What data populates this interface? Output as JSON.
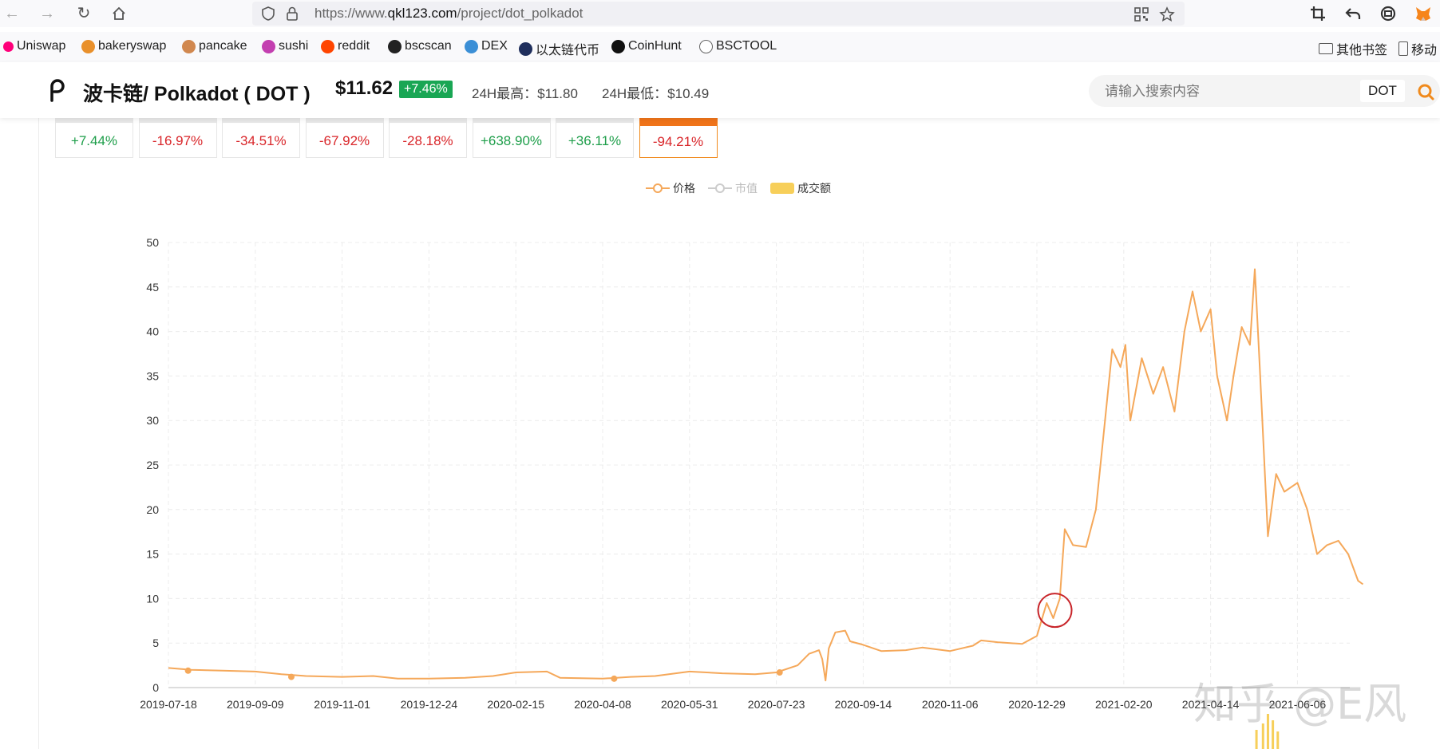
{
  "browser": {
    "url_prefix": "https://www.",
    "url_domain": "qkl123.com",
    "url_path": "/project/dot_polkadot",
    "bookmarks": [
      {
        "label": "Uniswap",
        "color": "#ff007a"
      },
      {
        "label": "bakeryswap",
        "color": "#e9902b"
      },
      {
        "label": "pancake",
        "color": "#d1884f"
      },
      {
        "label": "sushi",
        "color": "#c33fb0"
      },
      {
        "label": "reddit",
        "color": "#ff4500"
      },
      {
        "label": "bscscan",
        "color": "#222222"
      },
      {
        "label": "DEX",
        "color": "#3b8fd6"
      },
      {
        "label": "以太链代币",
        "color": "#1f2e5c"
      },
      {
        "label": "CoinHunt",
        "color": "#111111"
      },
      {
        "label": "BSCTOOL",
        "color": "#666666"
      }
    ],
    "other_bookmarks": "其他书签",
    "mobile_bookmarks": "移动"
  },
  "header": {
    "coin_name": "波卡链/ Polkadot ( DOT )",
    "price": "$11.62",
    "change": "+7.46%",
    "high_label": "24H最高：$11.80",
    "low_label": "24H最低：$10.49",
    "search_placeholder": "请输入搜索内容",
    "search_tag": "DOT"
  },
  "period_cards": [
    {
      "value": "+7.44%",
      "dir": "up"
    },
    {
      "value": "-16.97%",
      "dir": "down"
    },
    {
      "value": "-34.51%",
      "dir": "down"
    },
    {
      "value": "-67.92%",
      "dir": "down"
    },
    {
      "value": "-28.18%",
      "dir": "down"
    },
    {
      "value": "+638.90%",
      "dir": "up"
    },
    {
      "value": "+36.11%",
      "dir": "up"
    },
    {
      "value": "-94.21%",
      "dir": "down",
      "active": true
    }
  ],
  "legend": {
    "price": "价格",
    "mcap": "市值",
    "volume": "成交额"
  },
  "chart_data": {
    "type": "line",
    "series": [
      {
        "name": "价格",
        "color": "#f5a85a"
      }
    ],
    "y_ticks": [
      0,
      5,
      10,
      15,
      20,
      25,
      30,
      35,
      40,
      45,
      50
    ],
    "ylim": [
      0,
      50
    ],
    "x_ticks": [
      "2019-07-18",
      "2019-09-09",
      "2019-11-01",
      "2019-12-24",
      "2020-02-15",
      "2020-04-08",
      "2020-05-31",
      "2020-07-23",
      "2020-09-14",
      "2020-11-06",
      "2020-12-29",
      "2021-02-20",
      "2021-04-14",
      "2021-06-06"
    ],
    "points": [
      [
        "2019-07-18",
        2.2
      ],
      [
        "2019-08-01",
        2.0
      ],
      [
        "2019-08-20",
        1.9
      ],
      [
        "2019-09-09",
        1.8
      ],
      [
        "2019-09-25",
        1.5
      ],
      [
        "2019-10-10",
        1.3
      ],
      [
        "2019-11-01",
        1.2
      ],
      [
        "2019-11-20",
        1.3
      ],
      [
        "2019-12-05",
        1.0
      ],
      [
        "2019-12-24",
        1.0
      ],
      [
        "2020-01-15",
        1.1
      ],
      [
        "2020-02-01",
        1.3
      ],
      [
        "2020-02-15",
        1.7
      ],
      [
        "2020-03-05",
        1.8
      ],
      [
        "2020-03-13",
        1.1
      ],
      [
        "2020-04-08",
        1.0
      ],
      [
        "2020-04-25",
        1.2
      ],
      [
        "2020-05-10",
        1.3
      ],
      [
        "2020-05-31",
        1.8
      ],
      [
        "2020-06-20",
        1.6
      ],
      [
        "2020-07-10",
        1.5
      ],
      [
        "2020-07-23",
        1.7
      ],
      [
        "2020-08-05",
        2.5
      ],
      [
        "2020-08-12",
        3.8
      ],
      [
        "2020-08-18",
        4.2
      ],
      [
        "2020-08-20",
        3.2
      ],
      [
        "2020-08-22",
        0.8
      ],
      [
        "2020-08-24",
        4.4
      ],
      [
        "2020-08-28",
        6.2
      ],
      [
        "2020-09-03",
        6.4
      ],
      [
        "2020-09-06",
        5.2
      ],
      [
        "2020-09-14",
        4.8
      ],
      [
        "2020-09-25",
        4.1
      ],
      [
        "2020-10-10",
        4.2
      ],
      [
        "2020-10-20",
        4.5
      ],
      [
        "2020-11-06",
        4.1
      ],
      [
        "2020-11-20",
        4.7
      ],
      [
        "2020-11-25",
        5.3
      ],
      [
        "2020-12-05",
        5.1
      ],
      [
        "2020-12-20",
        4.9
      ],
      [
        "2020-12-29",
        5.8
      ],
      [
        "2021-01-04",
        9.5
      ],
      [
        "2021-01-08",
        7.8
      ],
      [
        "2021-01-12",
        10.0
      ],
      [
        "2021-01-15",
        17.8
      ],
      [
        "2021-01-20",
        16.0
      ],
      [
        "2021-01-28",
        15.8
      ],
      [
        "2021-02-03",
        20.0
      ],
      [
        "2021-02-08",
        29.0
      ],
      [
        "2021-02-13",
        38.0
      ],
      [
        "2021-02-18",
        36.0
      ],
      [
        "2021-02-21",
        38.5
      ],
      [
        "2021-02-24",
        30.0
      ],
      [
        "2021-03-03",
        37.0
      ],
      [
        "2021-03-10",
        33.0
      ],
      [
        "2021-03-16",
        36.0
      ],
      [
        "2021-03-23",
        31.0
      ],
      [
        "2021-03-29",
        40.0
      ],
      [
        "2021-04-03",
        44.5
      ],
      [
        "2021-04-08",
        40.0
      ],
      [
        "2021-04-14",
        42.5
      ],
      [
        "2021-04-18",
        35.0
      ],
      [
        "2021-04-24",
        30.0
      ],
      [
        "2021-04-28",
        35.0
      ],
      [
        "2021-05-03",
        40.5
      ],
      [
        "2021-05-08",
        38.5
      ],
      [
        "2021-05-11",
        47.0
      ],
      [
        "2021-05-14",
        36.0
      ],
      [
        "2021-05-19",
        17.0
      ],
      [
        "2021-05-24",
        24.0
      ],
      [
        "2021-05-29",
        22.0
      ],
      [
        "2021-06-06",
        23.0
      ],
      [
        "2021-06-12",
        20.0
      ],
      [
        "2021-06-18",
        15.0
      ],
      [
        "2021-06-24",
        16.0
      ],
      [
        "2021-07-01",
        16.5
      ],
      [
        "2021-07-07",
        15.0
      ],
      [
        "2021-07-13",
        12.0
      ],
      [
        "2021-07-16",
        11.6
      ]
    ],
    "markers": [
      [
        "2019-07-30",
        1.9
      ],
      [
        "2019-10-01",
        1.2
      ],
      [
        "2020-04-15",
        1.0
      ],
      [
        "2020-07-25",
        1.7
      ]
    ],
    "volume_bars": [
      [
        "2021-05-12",
        1.2
      ],
      [
        "2021-05-16",
        1.6
      ],
      [
        "2021-05-19",
        2.2
      ],
      [
        "2021-05-22",
        1.8
      ],
      [
        "2021-05-25",
        1.1
      ]
    ],
    "annotation": {
      "type": "circle",
      "date": "2021-01-08",
      "value": 8.5,
      "color": "#c8252a"
    }
  },
  "watermark": "知乎 @E风"
}
